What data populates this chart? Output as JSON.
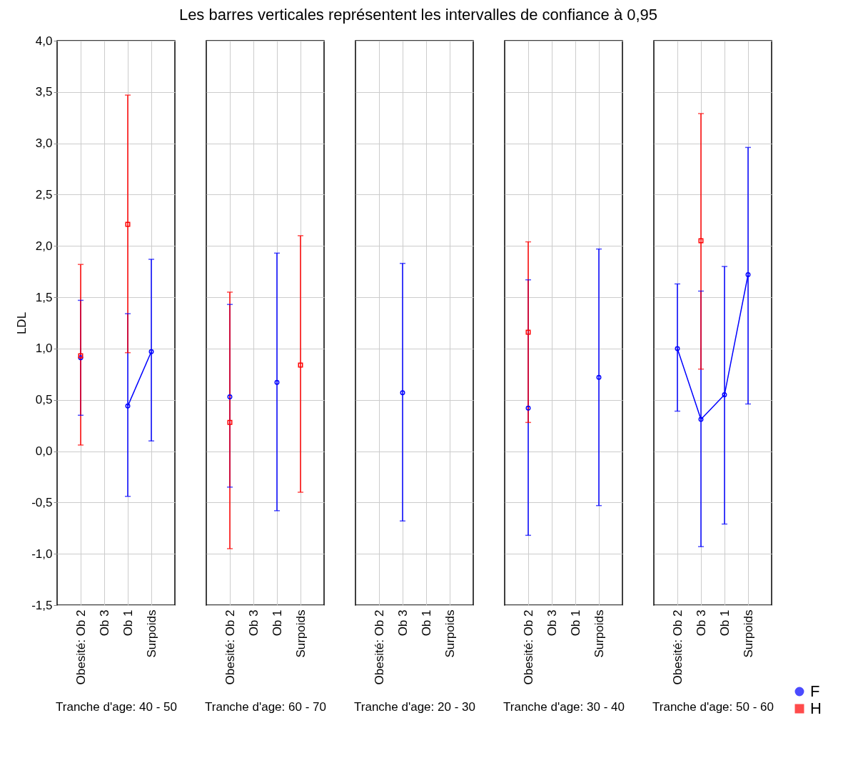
{
  "chart_data": [
    {
      "type": "line",
      "xlabel": "Tranche d'age: 40 - 50",
      "ylabel": "LDL",
      "legend": "bottom right",
      "categories": [
        "Obesité: Ob 2",
        "Ob 3",
        "Ob 1",
        "Surpoids"
      ],
      "ylim": [
        -1.5,
        4
      ],
      "yticks": [
        {
          "value": -1.5,
          "label": "-1,5"
        },
        {
          "value": -1,
          "label": "-1,0"
        },
        {
          "value": -0.5,
          "label": "-0,5"
        },
        {
          "value": 0,
          "label": "0,0"
        },
        {
          "value": 0.5,
          "label": "0,5"
        },
        {
          "value": 1,
          "label": "1,0"
        },
        {
          "value": 1.5,
          "label": "1,5"
        },
        {
          "value": 2,
          "label": "2,0"
        },
        {
          "value": 2.5,
          "label": "2,5"
        },
        {
          "value": 3,
          "label": "3,0"
        },
        {
          "value": 3.5,
          "label": "3,5"
        },
        {
          "value": 4,
          "label": "4,0"
        }
      ],
      "grid": true,
      "line_style": "solid",
      "series": [
        {
          "name": "F",
          "color": "#0000ff",
          "marker": "circle",
          "values": [
            0.91,
            null,
            0.44,
            0.97
          ],
          "errors": [
            [
              0.35,
              1.47
            ],
            null,
            [
              -0.44,
              1.34
            ],
            [
              0.1,
              1.87
            ]
          ]
        },
        {
          "name": "H",
          "color": "#ff0000",
          "marker": "square",
          "values": [
            0.93,
            null,
            2.21,
            null
          ],
          "errors": [
            [
              0.06,
              1.82
            ],
            null,
            [
              0.96,
              3.47
            ],
            null
          ]
        }
      ]
    },
    {
      "type": "line",
      "xlabel": "Tranche d'age: 60 - 70",
      "legend": "bottom right",
      "categories": [
        "Obesité: Ob 2",
        "Ob 3",
        "Ob 1",
        "Surpoids"
      ],
      "ylim": [
        -1.5,
        4
      ],
      "yticks": [
        -1.5,
        -1,
        -0.5,
        0,
        0.5,
        1,
        1.5,
        2,
        2.5,
        3,
        3.5,
        4
      ],
      "tick_labels": "x",
      "grid": true,
      "line_style": "solid",
      "series": [
        {
          "name": "F",
          "color": "#0000ff",
          "marker": "circle",
          "values": [
            0.53,
            null,
            0.67,
            null
          ],
          "errors": [
            [
              -0.35,
              1.43
            ],
            null,
            [
              -0.58,
              1.93
            ],
            null
          ]
        },
        {
          "name": "H",
          "color": "#ff0000",
          "marker": "square",
          "values": [
            0.28,
            null,
            null,
            0.84
          ],
          "errors": [
            [
              -0.95,
              1.55
            ],
            null,
            null,
            [
              -0.4,
              2.1
            ]
          ]
        }
      ]
    },
    {
      "type": "line",
      "title": "Les barres verticales représentent les intervalles de confiance à 0,95",
      "xlabel": "Tranche d'age: 20 - 30",
      "legend": "bottom right",
      "categories": [
        "Obesité: Ob 2",
        "Ob 3",
        "Ob 1",
        "Surpoids"
      ],
      "ylim": [
        -1.5,
        4
      ],
      "yticks": [
        -1.5,
        -1,
        -0.5,
        0,
        0.5,
        1,
        1.5,
        2,
        2.5,
        3,
        3.5,
        4
      ],
      "tick_labels": "x",
      "grid": true,
      "line_style": "solid",
      "series": [
        {
          "name": "F",
          "color": "#0000ff",
          "marker": "circle",
          "values": [
            null,
            0.57,
            null,
            null
          ],
          "errors": [
            null,
            [
              -0.68,
              1.83
            ],
            null,
            null
          ]
        }
      ]
    },
    {
      "type": "line",
      "xlabel": "Tranche d'age: 30 - 40",
      "legend": "bottom right",
      "categories": [
        "Obesité: Ob 2",
        "Ob 3",
        "Ob 1",
        "Surpoids"
      ],
      "ylim": [
        -1.5,
        4
      ],
      "yticks": [
        -1.5,
        -1,
        -0.5,
        0,
        0.5,
        1,
        1.5,
        2,
        2.5,
        3,
        3.5,
        4
      ],
      "tick_labels": "x",
      "grid": true,
      "line_style": "solid",
      "series": [
        {
          "name": "F",
          "color": "#0000ff",
          "marker": "circle",
          "values": [
            0.42,
            null,
            null,
            0.72
          ],
          "errors": [
            [
              -0.82,
              1.67
            ],
            null,
            null,
            [
              -0.53,
              1.97
            ]
          ]
        },
        {
          "name": "H",
          "color": "#ff0000",
          "marker": "square",
          "values": [
            1.16,
            null,
            null,
            null
          ],
          "errors": [
            [
              0.28,
              2.04
            ],
            null,
            null,
            null
          ]
        }
      ]
    },
    {
      "type": "line",
      "xlabel": "Tranche d'age: 50 - 60",
      "categories": [
        "Obesité: Ob 2",
        "Ob 3",
        "Ob 1",
        "Surpoids"
      ],
      "ylim": [
        -1.5,
        4
      ],
      "yticks": [
        -1.5,
        -1,
        -0.5,
        0,
        0.5,
        1,
        1.5,
        2,
        2.5,
        3,
        3.5,
        4
      ],
      "tick_labels": "x",
      "grid": true,
      "line_style": "solid",
      "legend": "bottom right",
      "series": [
        {
          "name": "F",
          "color": "#0000ff",
          "marker": "circle",
          "values": [
            1.0,
            0.31,
            0.55,
            1.72
          ],
          "errors": [
            [
              0.39,
              1.63
            ],
            [
              -0.93,
              1.56
            ],
            [
              -0.71,
              1.8
            ],
            [
              0.46,
              2.96
            ]
          ]
        },
        {
          "name": "H",
          "color": "#ff0000",
          "marker": "square",
          "values": [
            null,
            2.05,
            null,
            null
          ],
          "errors": [
            null,
            [
              0.8,
              3.29
            ],
            null,
            null
          ]
        }
      ]
    }
  ]
}
